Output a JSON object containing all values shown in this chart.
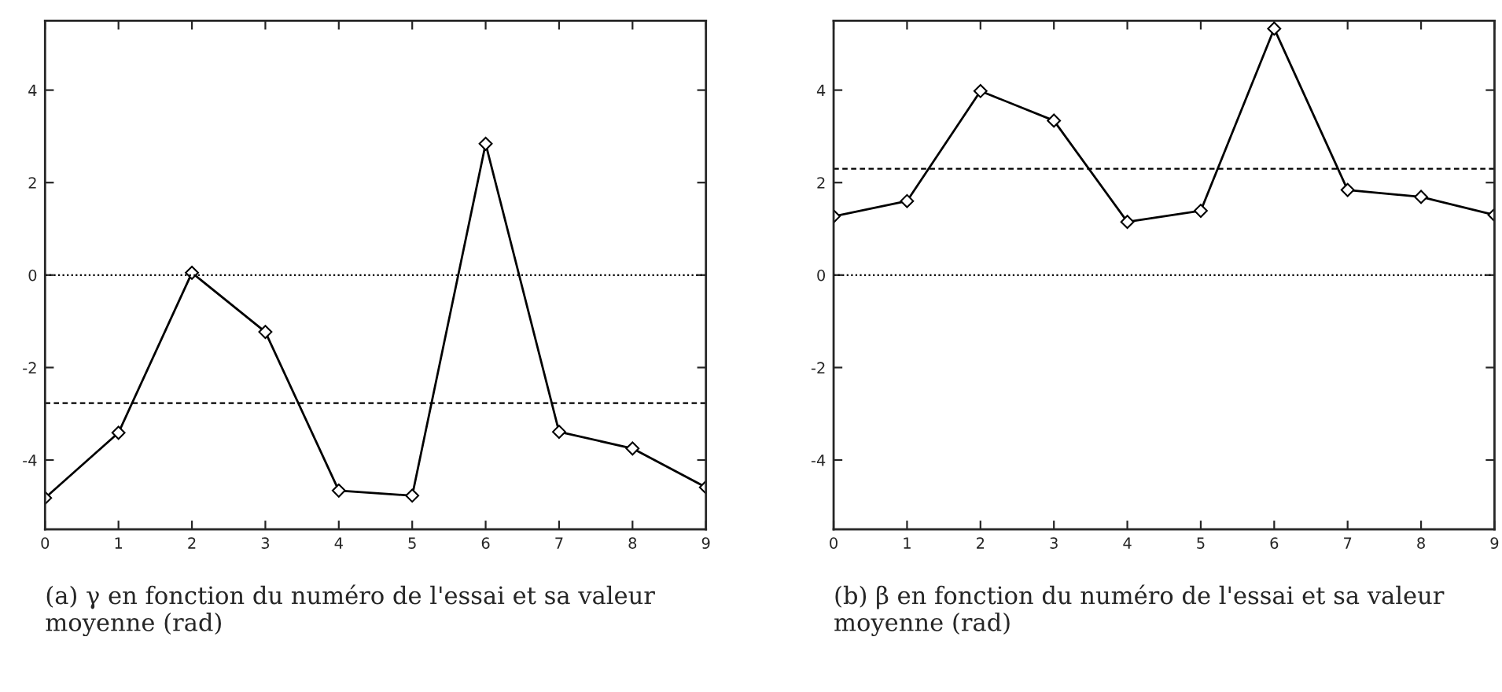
{
  "chart_data": [
    {
      "type": "line",
      "x": [
        0,
        1,
        2,
        3,
        4,
        5,
        6,
        7,
        8,
        9
      ],
      "xlim": [
        0,
        9
      ],
      "xticks": [
        0,
        1,
        2,
        3,
        4,
        5,
        6,
        7,
        8,
        9
      ],
      "ylim": [
        -5.5,
        5.5
      ],
      "yticks": [
        -4,
        -2,
        0,
        2,
        4
      ],
      "marker": "diamond",
      "line_style": "solid",
      "grid": false,
      "legend": false,
      "series": [
        {
          "color": "#000000",
          "values": [
            -4.82,
            -3.41,
            0.05,
            -1.23,
            -4.66,
            -4.77,
            2.84,
            -3.39,
            -3.75,
            -4.59
          ]
        }
      ],
      "ref_lines": [
        {
          "axis": "y",
          "value": 0,
          "line_style": "dotted",
          "color": "#000000"
        },
        {
          "axis": "y",
          "value": -2.77,
          "line_style": "dashed",
          "color": "#000000"
        }
      ],
      "annotations": [
        "(a) γ en fonction du numéro de l'essai et sa valeur moyenne (rad)"
      ]
    },
    {
      "type": "line",
      "x": [
        0,
        1,
        2,
        3,
        4,
        5,
        6,
        7,
        8,
        9
      ],
      "xlim": [
        0,
        9
      ],
      "xticks": [
        0,
        1,
        2,
        3,
        4,
        5,
        6,
        7,
        8,
        9
      ],
      "ylim": [
        -5.5,
        5.5
      ],
      "yticks": [
        -4,
        -2,
        0,
        2,
        4
      ],
      "marker": "diamond",
      "line_style": "solid",
      "grid": false,
      "legend": false,
      "series": [
        {
          "color": "#000000",
          "values": [
            1.27,
            1.6,
            3.98,
            3.34,
            1.15,
            1.39,
            5.33,
            1.84,
            1.69,
            1.3
          ]
        }
      ],
      "ref_lines": [
        {
          "axis": "y",
          "value": 0,
          "line_style": "dotted",
          "color": "#000000"
        },
        {
          "axis": "y",
          "value": 2.3,
          "line_style": "dashed",
          "color": "#000000"
        }
      ],
      "annotations": [
        "(b) β en fonction du numéro de l'essai et sa valeur moyenne (rad)"
      ]
    }
  ]
}
